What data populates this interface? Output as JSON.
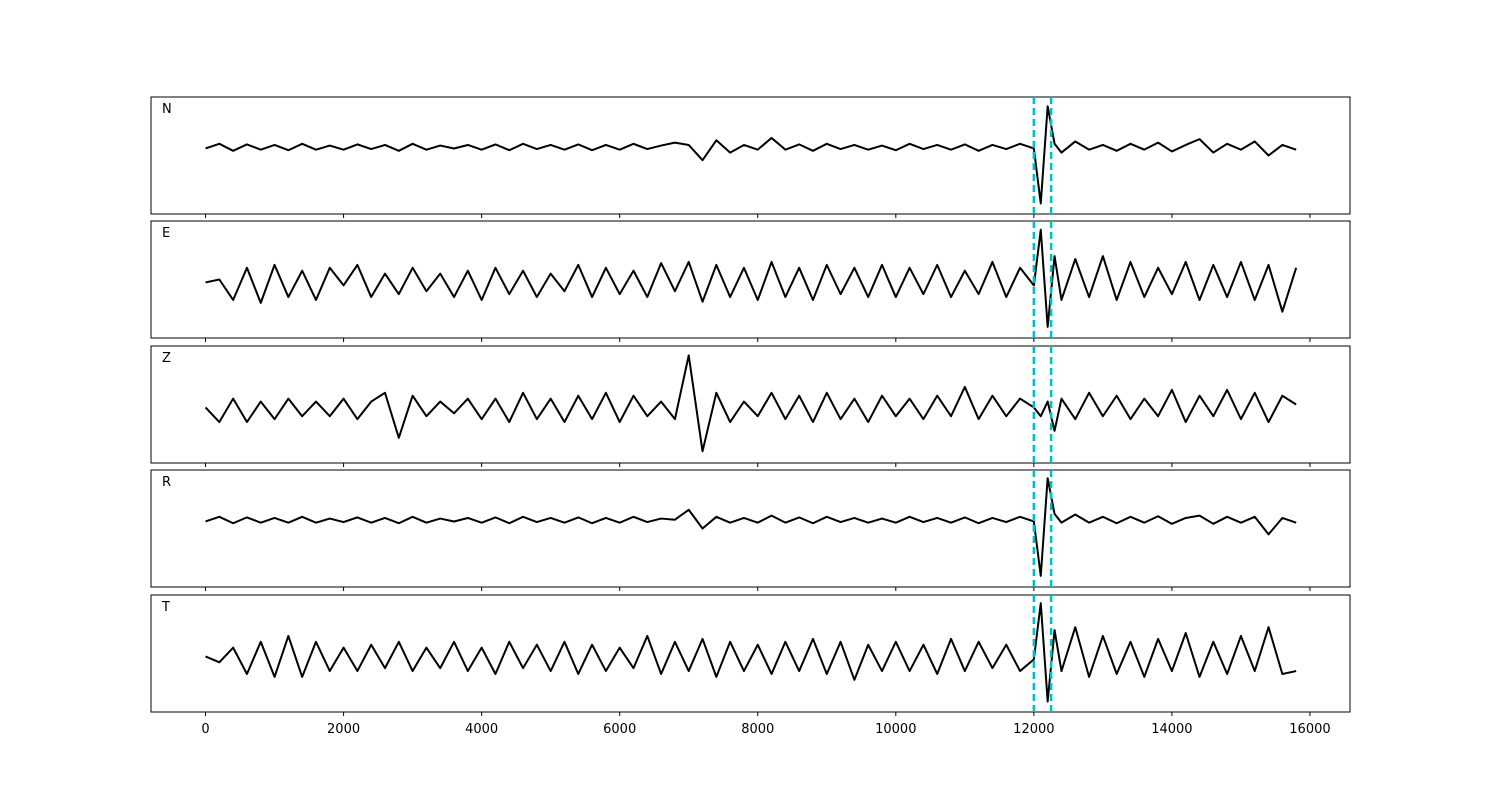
{
  "chart_data": {
    "type": "line",
    "x": [
      0,
      200,
      400,
      600,
      800,
      1000,
      1200,
      1400,
      1600,
      1800,
      2000,
      2200,
      2400,
      2600,
      2800,
      3000,
      3200,
      3400,
      3600,
      3800,
      4000,
      4200,
      4400,
      4600,
      4800,
      5000,
      5200,
      5400,
      5600,
      5800,
      6000,
      6200,
      6400,
      6600,
      6800,
      7000,
      7200,
      7400,
      7600,
      7800,
      8000,
      8200,
      8400,
      8600,
      8800,
      9000,
      9200,
      9400,
      9600,
      9800,
      10000,
      10200,
      10400,
      10600,
      10800,
      11000,
      11200,
      11400,
      11600,
      11800,
      12000,
      12100,
      12200,
      12300,
      12400,
      12600,
      12800,
      13000,
      13200,
      13400,
      13600,
      13800,
      14000,
      14200,
      14400,
      14600,
      14800,
      15000,
      15200,
      15400,
      15600,
      15800
    ],
    "xlim": [
      -790,
      16580
    ],
    "xticks": [
      0,
      2000,
      4000,
      6000,
      8000,
      10000,
      12000,
      14000,
      16000
    ],
    "ylim": [
      -1,
      1
    ],
    "markers": [
      12000,
      12250
    ],
    "marker_color": "#00bfbf",
    "series": [
      {
        "name": "N",
        "color": "#000000",
        "values": [
          0.12,
          0.2,
          0.08,
          0.19,
          0.1,
          0.18,
          0.09,
          0.2,
          0.1,
          0.17,
          0.1,
          0.19,
          0.11,
          0.18,
          0.08,
          0.2,
          0.1,
          0.17,
          0.12,
          0.18,
          0.1,
          0.19,
          0.09,
          0.2,
          0.11,
          0.18,
          0.1,
          0.19,
          0.09,
          0.18,
          0.1,
          0.2,
          0.11,
          0.17,
          0.22,
          0.18,
          -0.08,
          0.26,
          0.05,
          0.18,
          0.1,
          0.3,
          0.1,
          0.19,
          0.08,
          0.2,
          0.11,
          0.18,
          0.1,
          0.17,
          0.09,
          0.2,
          0.11,
          0.18,
          0.1,
          0.19,
          0.08,
          0.18,
          0.11,
          0.2,
          0.12,
          -0.82,
          0.84,
          0.2,
          0.05,
          0.24,
          0.1,
          0.18,
          0.08,
          0.2,
          0.1,
          0.22,
          0.07,
          0.18,
          0.28,
          0.05,
          0.2,
          0.1,
          0.24,
          0.0,
          0.18,
          0.1
        ]
      },
      {
        "name": "E",
        "color": "#000000",
        "values": [
          -0.05,
          0.0,
          -0.35,
          0.2,
          -0.4,
          0.25,
          -0.3,
          0.15,
          -0.35,
          0.2,
          -0.1,
          0.25,
          -0.3,
          0.1,
          -0.25,
          0.2,
          -0.2,
          0.1,
          -0.3,
          0.15,
          -0.35,
          0.2,
          -0.25,
          0.15,
          -0.3,
          0.1,
          -0.2,
          0.25,
          -0.3,
          0.2,
          -0.25,
          0.15,
          -0.3,
          0.28,
          -0.2,
          0.3,
          -0.38,
          0.25,
          -0.3,
          0.2,
          -0.35,
          0.3,
          -0.3,
          0.2,
          -0.35,
          0.25,
          -0.25,
          0.2,
          -0.3,
          0.25,
          -0.3,
          0.2,
          -0.25,
          0.25,
          -0.3,
          0.15,
          -0.25,
          0.3,
          -0.3,
          0.2,
          -0.1,
          0.85,
          -0.81,
          0.4,
          -0.35,
          0.35,
          -0.3,
          0.4,
          -0.35,
          0.3,
          -0.3,
          0.2,
          -0.25,
          0.3,
          -0.35,
          0.25,
          -0.3,
          0.3,
          -0.35,
          0.25,
          -0.55,
          0.2
        ]
      },
      {
        "name": "Z",
        "color": "#000000",
        "values": [
          -0.05,
          -0.3,
          0.1,
          -0.3,
          0.05,
          -0.25,
          0.1,
          -0.2,
          0.05,
          -0.2,
          0.1,
          -0.25,
          0.05,
          0.2,
          -0.57,
          0.15,
          -0.2,
          0.05,
          -0.15,
          0.1,
          -0.25,
          0.1,
          -0.3,
          0.2,
          -0.25,
          0.1,
          -0.3,
          0.15,
          -0.25,
          0.2,
          -0.3,
          0.15,
          -0.2,
          0.05,
          -0.25,
          0.84,
          -0.8,
          0.2,
          -0.3,
          0.05,
          -0.2,
          0.2,
          -0.25,
          0.15,
          -0.3,
          0.2,
          -0.25,
          0.1,
          -0.3,
          0.15,
          -0.2,
          0.1,
          -0.25,
          0.15,
          -0.2,
          0.3,
          -0.25,
          0.15,
          -0.2,
          0.1,
          -0.05,
          -0.2,
          0.05,
          -0.45,
          0.1,
          -0.25,
          0.2,
          -0.2,
          0.15,
          -0.25,
          0.1,
          -0.2,
          0.25,
          -0.3,
          0.15,
          -0.2,
          0.25,
          -0.25,
          0.2,
          -0.3,
          0.15,
          0.0
        ]
      },
      {
        "name": "R",
        "color": "#000000",
        "values": [
          0.12,
          0.2,
          0.09,
          0.19,
          0.1,
          0.18,
          0.1,
          0.2,
          0.1,
          0.17,
          0.11,
          0.19,
          0.1,
          0.18,
          0.09,
          0.2,
          0.1,
          0.17,
          0.12,
          0.18,
          0.1,
          0.19,
          0.09,
          0.2,
          0.11,
          0.18,
          0.1,
          0.19,
          0.09,
          0.18,
          0.1,
          0.2,
          0.11,
          0.17,
          0.15,
          0.32,
          0.0,
          0.2,
          0.1,
          0.18,
          0.1,
          0.22,
          0.1,
          0.19,
          0.09,
          0.2,
          0.11,
          0.18,
          0.1,
          0.17,
          0.1,
          0.2,
          0.11,
          0.18,
          0.1,
          0.19,
          0.09,
          0.18,
          0.11,
          0.2,
          0.12,
          -0.81,
          0.86,
          0.25,
          0.1,
          0.24,
          0.1,
          0.2,
          0.09,
          0.2,
          0.1,
          0.21,
          0.08,
          0.18,
          0.22,
          0.08,
          0.2,
          0.1,
          0.2,
          -0.1,
          0.18,
          0.1
        ]
      },
      {
        "name": "T",
        "color": "#000000",
        "values": [
          -0.05,
          -0.15,
          0.1,
          -0.35,
          0.2,
          -0.4,
          0.3,
          -0.4,
          0.2,
          -0.3,
          0.1,
          -0.3,
          0.15,
          -0.25,
          0.2,
          -0.3,
          0.1,
          -0.25,
          0.2,
          -0.3,
          0.1,
          -0.35,
          0.2,
          -0.25,
          0.15,
          -0.3,
          0.2,
          -0.35,
          0.15,
          -0.3,
          0.1,
          -0.25,
          0.3,
          -0.35,
          0.2,
          -0.3,
          0.25,
          -0.4,
          0.2,
          -0.3,
          0.15,
          -0.35,
          0.2,
          -0.3,
          0.25,
          -0.35,
          0.2,
          -0.45,
          0.15,
          -0.3,
          0.2,
          -0.3,
          0.15,
          -0.35,
          0.25,
          -0.3,
          0.2,
          -0.25,
          0.15,
          -0.3,
          -0.1,
          0.86,
          -0.82,
          0.4,
          -0.3,
          0.45,
          -0.4,
          0.3,
          -0.35,
          0.2,
          -0.4,
          0.25,
          -0.3,
          0.35,
          -0.4,
          0.2,
          -0.35,
          0.3,
          -0.3,
          0.45,
          -0.35,
          -0.3
        ]
      }
    ]
  }
}
